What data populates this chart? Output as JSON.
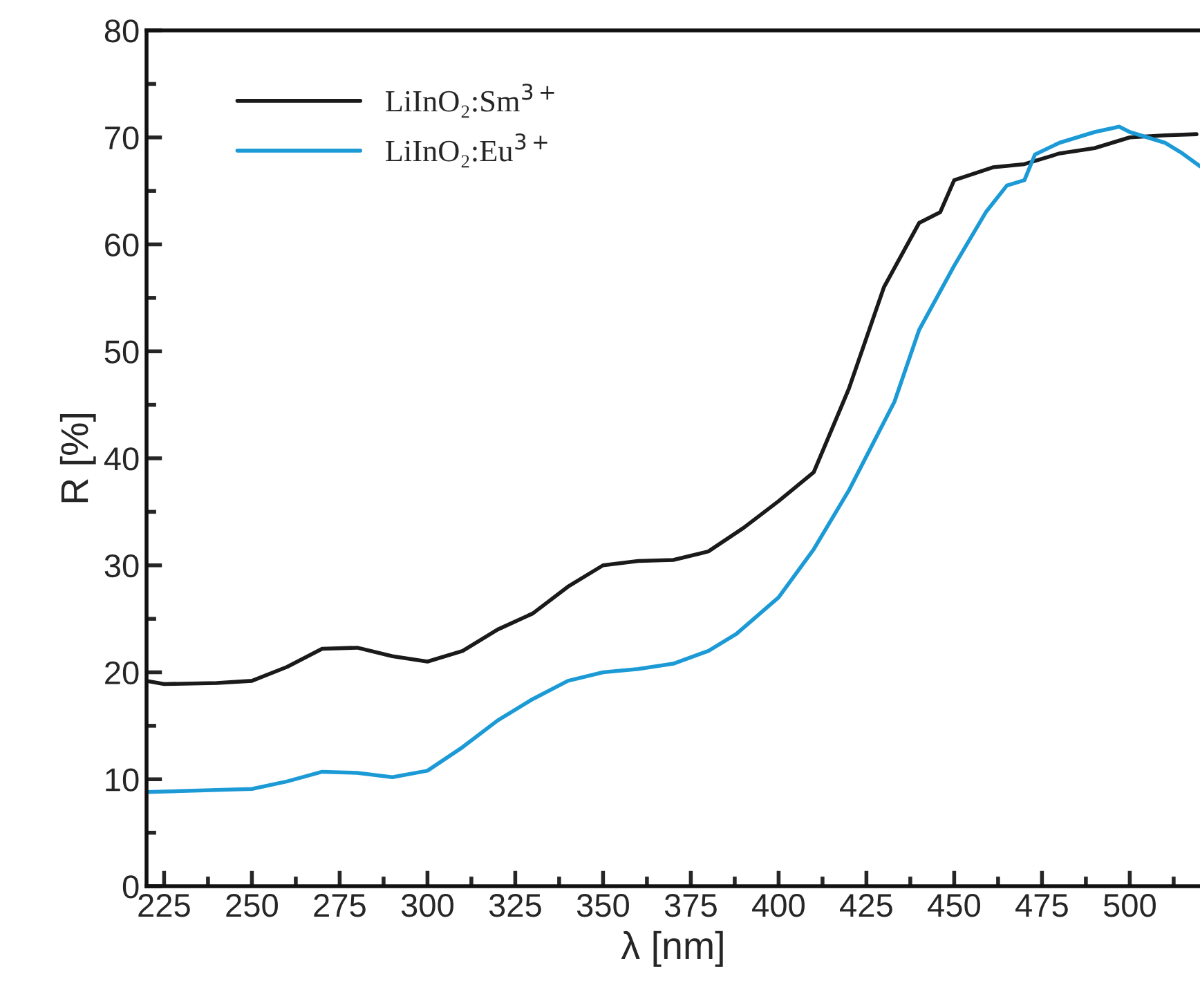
{
  "chart_data": {
    "type": "line",
    "xlabel": "λ [nm]",
    "ylabel": "R [%]",
    "xlim": [
      220,
      520
    ],
    "xticks": [
      225,
      250,
      275,
      300,
      325,
      350,
      375,
      400,
      425,
      450,
      475,
      500
    ],
    "ylim": [
      0,
      80
    ],
    "yticks": [
      0,
      10,
      20,
      30,
      40,
      50,
      60,
      70,
      80
    ],
    "grid": false,
    "legend": "top left",
    "line_style": "solid",
    "marker": "none",
    "series": [
      {
        "name": "LiInO₂:Sm$^{3+}$",
        "color": "#1a1a1a",
        "x": [
          220,
          225,
          240,
          250,
          260,
          270,
          280,
          290,
          300,
          310,
          320,
          330,
          340,
          350,
          360,
          370,
          380,
          390,
          400,
          410,
          420,
          430,
          440,
          446,
          450,
          461,
          470,
          480,
          490,
          500,
          510,
          519
        ],
        "values": [
          19.2,
          18.9,
          19.0,
          19.2,
          20.5,
          22.2,
          22.3,
          21.5,
          21.0,
          22.0,
          24.0,
          25.5,
          28.0,
          30.0,
          30.4,
          30.5,
          31.3,
          33.5,
          36.0,
          38.7,
          46.5,
          56.0,
          62.0,
          63.0,
          66.0,
          67.2,
          67.5,
          68.5,
          69.0,
          70.0,
          70.2,
          70.3
        ]
      },
      {
        "name": "LiInO₂:Eu$^{3+}$",
        "color": "#1b9ad6",
        "x": [
          220,
          250,
          260,
          270,
          280,
          290,
          300,
          310,
          320,
          330,
          340,
          350,
          360,
          370,
          380,
          388,
          400,
          410,
          420,
          433,
          440,
          450,
          459,
          465,
          470,
          473,
          480,
          490,
          497,
          500,
          510,
          515,
          520
        ],
        "values": [
          8.8,
          9.1,
          9.8,
          10.7,
          10.6,
          10.2,
          10.8,
          13.0,
          15.5,
          17.5,
          19.2,
          20.0,
          20.3,
          20.8,
          22.0,
          23.6,
          27.0,
          31.5,
          37.0,
          45.3,
          52.0,
          58.0,
          63.0,
          65.5,
          66.0,
          68.4,
          69.5,
          70.5,
          71.0,
          70.5,
          69.5,
          68.5,
          67.3
        ]
      }
    ]
  }
}
